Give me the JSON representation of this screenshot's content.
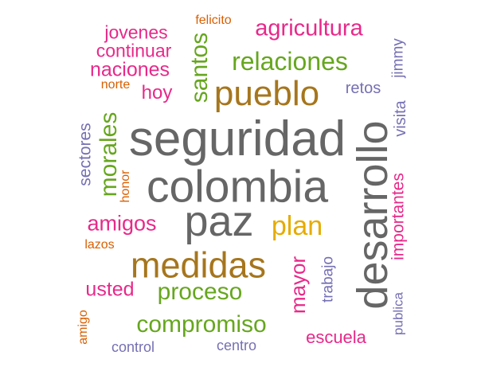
{
  "colors": {
    "gray": "#666666",
    "olive": "#A6761D",
    "green": "#66A61E",
    "magenta": "#E7298A",
    "purple": "#7570B3",
    "orange": "#D95F02",
    "gold": "#E6AB02"
  },
  "words": [
    {
      "text": "seguridad",
      "color": "gray"
    },
    {
      "text": "colombia",
      "color": "gray"
    },
    {
      "text": "desarrollo",
      "color": "gray"
    },
    {
      "text": "paz",
      "color": "gray"
    },
    {
      "text": "medidas",
      "color": "olive"
    },
    {
      "text": "pueblo",
      "color": "olive"
    },
    {
      "text": "plan",
      "color": "gold"
    },
    {
      "text": "relaciones",
      "color": "green"
    },
    {
      "text": "agricultura",
      "color": "magenta"
    },
    {
      "text": "santos",
      "color": "green"
    },
    {
      "text": "morales",
      "color": "green"
    },
    {
      "text": "proceso",
      "color": "green"
    },
    {
      "text": "compromiso",
      "color": "green"
    },
    {
      "text": "mayor",
      "color": "magenta"
    },
    {
      "text": "importantes",
      "color": "magenta"
    },
    {
      "text": "amigos",
      "color": "magenta"
    },
    {
      "text": "naciones",
      "color": "magenta"
    },
    {
      "text": "usted",
      "color": "magenta"
    },
    {
      "text": "jovenes",
      "color": "magenta"
    },
    {
      "text": "continuar",
      "color": "magenta"
    },
    {
      "text": "hoy",
      "color": "magenta"
    },
    {
      "text": "escuela",
      "color": "magenta"
    },
    {
      "text": "sectores",
      "color": "purple"
    },
    {
      "text": "visita",
      "color": "purple"
    },
    {
      "text": "jimmy",
      "color": "purple"
    },
    {
      "text": "retos",
      "color": "purple"
    },
    {
      "text": "trabajo",
      "color": "purple"
    },
    {
      "text": "publica",
      "color": "purple"
    },
    {
      "text": "control",
      "color": "purple"
    },
    {
      "text": "centro",
      "color": "purple"
    },
    {
      "text": "felicito",
      "color": "orange"
    },
    {
      "text": "norte",
      "color": "orange"
    },
    {
      "text": "honor",
      "color": "orange"
    },
    {
      "text": "lazos",
      "color": "orange"
    },
    {
      "text": "amigo",
      "color": "orange"
    }
  ]
}
